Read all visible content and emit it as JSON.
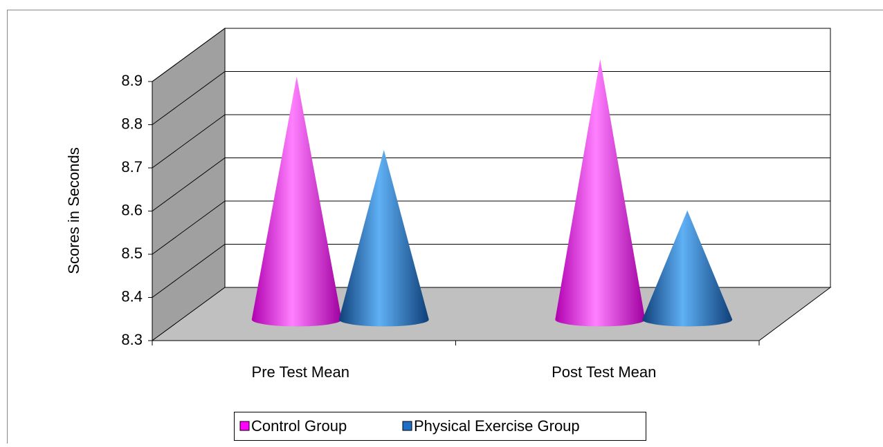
{
  "chart_data": {
    "type": "cone3d",
    "y_label": "Scores in Seconds",
    "categories": [
      "Pre Test Mean",
      "Post Test Mean"
    ],
    "series": [
      {
        "name": "Control Group",
        "color": "#ff00ff",
        "values": [
          8.85,
          8.89
        ]
      },
      {
        "name": "Physical Exercise Group",
        "color": "#1f6fc4",
        "values": [
          8.68,
          8.54
        ]
      }
    ],
    "ylim": [
      8.3,
      8.9
    ],
    "yticks": [
      8.3,
      8.4,
      8.5,
      8.6,
      8.7,
      8.8,
      8.9
    ],
    "grid": true,
    "legend": "bottom"
  }
}
